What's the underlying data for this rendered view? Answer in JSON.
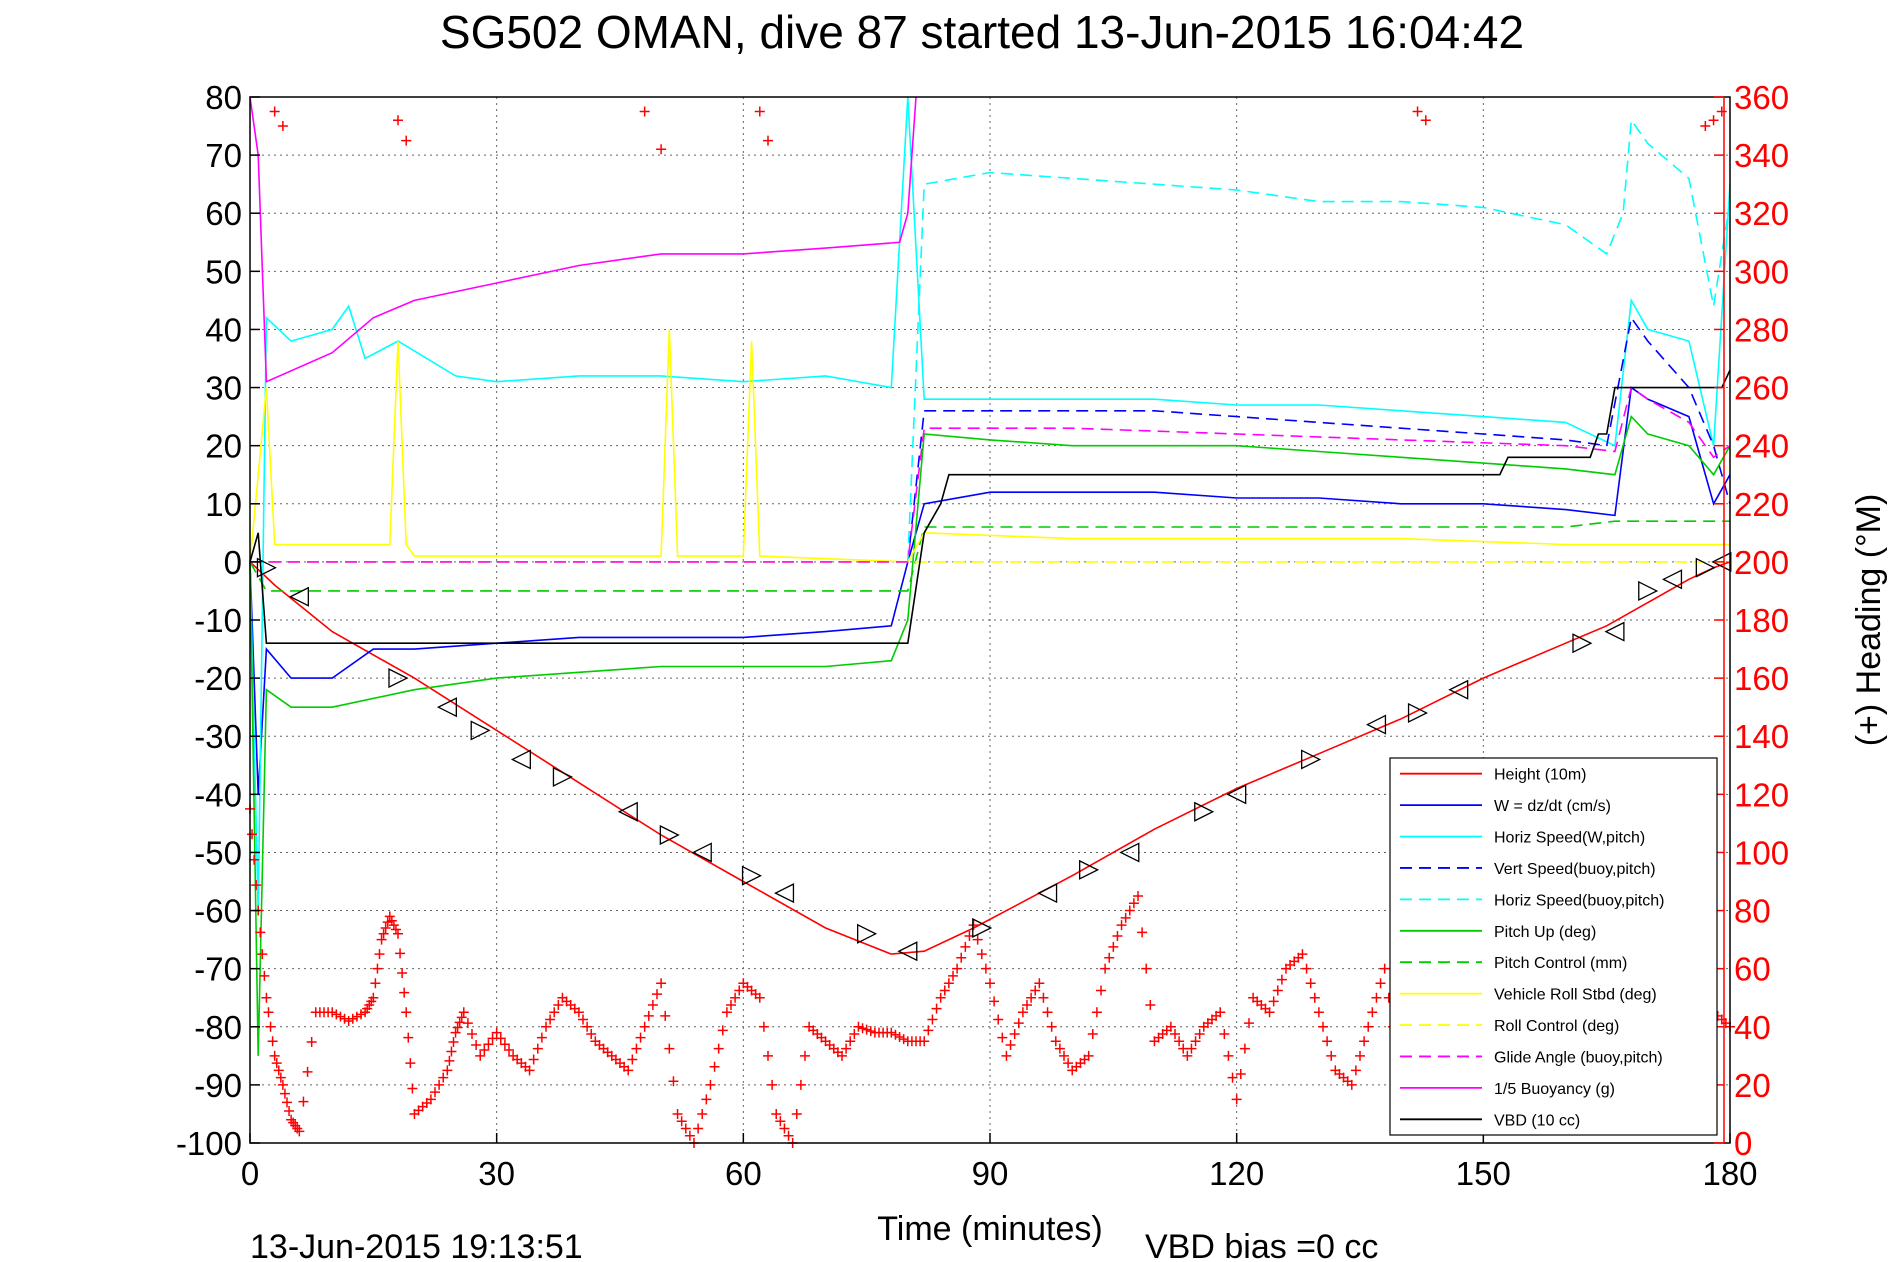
{
  "chart_data": {
    "type": "line",
    "title": "SG502 OMAN, dive 87 started 13-Jun-2015 16:04:42",
    "xlabel": "Time (minutes)",
    "ylabel": "",
    "y2label": "(+) Heading (°M)",
    "footer_left": "13-Jun-2015 19:13:51",
    "footer_right": "VBD bias =0 cc",
    "xlim": [
      0,
      180
    ],
    "ylim": [
      -100,
      80
    ],
    "y2lim": [
      0,
      360
    ],
    "x_ticks": [
      "0",
      "30",
      "60",
      "90",
      "120",
      "150",
      "180"
    ],
    "y_ticks": [
      "80",
      "70",
      "60",
      "50",
      "40",
      "30",
      "20",
      "10",
      "0",
      "-10",
      "-20",
      "-30",
      "-40",
      "-50",
      "-60",
      "-70",
      "-80",
      "-90",
      "-100"
    ],
    "y2_ticks": [
      "360",
      "340",
      "320",
      "300",
      "280",
      "260",
      "240",
      "220",
      "200",
      "180",
      "160",
      "140",
      "120",
      "100",
      "80",
      "60",
      "40",
      "20",
      "0"
    ],
    "grid": true,
    "legend_position": "bottom-right",
    "colors": {
      "heading_axis": "#ff0000"
    },
    "series": [
      {
        "name": "Height (10m)",
        "color": "#ff0000",
        "dash": "solid",
        "x": [
          0,
          3,
          10,
          20,
          30,
          40,
          50,
          60,
          70,
          78,
          82,
          88,
          100,
          110,
          120,
          130,
          140,
          150,
          160,
          165,
          170,
          175,
          178,
          180
        ],
        "y": [
          0,
          -4,
          -12,
          -20,
          -29,
          -38,
          -47,
          -55,
          -63,
          -67.5,
          -67,
          -63,
          -54,
          -46,
          -39,
          -33,
          -27,
          -20,
          -14,
          -11,
          -7,
          -3,
          -1,
          0
        ]
      },
      {
        "name": "W = dz/dt (cm/s)",
        "color": "#0000ff",
        "dash": "solid",
        "x": [
          0,
          1,
          2,
          5,
          10,
          15,
          20,
          30,
          40,
          50,
          60,
          70,
          78,
          80,
          82,
          90,
          100,
          110,
          120,
          130,
          140,
          150,
          160,
          166,
          168,
          170,
          175,
          178,
          180
        ],
        "y": [
          0,
          -40,
          -15,
          -20,
          -20,
          -15,
          -15,
          -14,
          -13,
          -13,
          -13,
          -12,
          -11,
          0,
          10,
          12,
          12,
          12,
          11,
          11,
          10,
          10,
          9,
          8,
          30,
          28,
          25,
          10,
          15
        ]
      },
      {
        "name": "Horiz Speed(W,pitch)",
        "color": "#00ffff",
        "dash": "solid",
        "x": [
          0,
          1,
          2,
          5,
          10,
          12,
          14,
          18,
          25,
          30,
          40,
          50,
          60,
          70,
          78,
          80,
          82,
          90,
          100,
          110,
          120,
          130,
          140,
          150,
          160,
          166,
          168,
          170,
          175,
          178,
          180
        ],
        "y": [
          0,
          -60,
          42,
          38,
          40,
          44,
          35,
          38,
          32,
          31,
          32,
          32,
          31,
          32,
          30,
          80,
          28,
          28,
          28,
          28,
          27,
          27,
          26,
          25,
          24,
          20,
          45,
          40,
          38,
          20,
          65
        ]
      },
      {
        "name": "Vert Speed(buoy,pitch)",
        "color": "#0000ff",
        "dash": "dashed",
        "x": [
          80,
          82,
          90,
          100,
          110,
          120,
          130,
          140,
          150,
          160,
          165,
          168,
          170,
          175,
          178,
          180
        ],
        "y": [
          0,
          26,
          26,
          26,
          26,
          25,
          24,
          23,
          22,
          21,
          20,
          42,
          38,
          30,
          20,
          10
        ]
      },
      {
        "name": "Horiz Speed(buoy,pitch)",
        "color": "#00ffff",
        "dash": "dashed",
        "x": [
          80,
          82,
          90,
          100,
          110,
          120,
          130,
          140,
          150,
          160,
          165,
          167,
          168,
          170,
          175,
          178,
          180
        ],
        "y": [
          0,
          65,
          67,
          66,
          65,
          64,
          62,
          62,
          61,
          58,
          53,
          60,
          76,
          72,
          66,
          44,
          62
        ]
      },
      {
        "name": "Pitch Up (deg)",
        "color": "#00cc00",
        "dash": "solid",
        "x": [
          0,
          1,
          2,
          5,
          10,
          20,
          30,
          40,
          50,
          60,
          70,
          78,
          80,
          82,
          90,
          100,
          110,
          120,
          130,
          140,
          150,
          160,
          166,
          168,
          170,
          175,
          178,
          180
        ],
        "y": [
          0,
          -85,
          -22,
          -25,
          -25,
          -22,
          -20,
          -19,
          -18,
          -18,
          -18,
          -17,
          -10,
          22,
          21,
          20,
          20,
          20,
          19,
          18,
          17,
          16,
          15,
          25,
          22,
          20,
          15,
          20
        ]
      },
      {
        "name": "Pitch Control (mm)",
        "color": "#00cc00",
        "dash": "dashed",
        "x": [
          0,
          2,
          80,
          82,
          160,
          166,
          180
        ],
        "y": [
          0,
          -5,
          -5,
          6,
          6,
          7,
          7
        ]
      },
      {
        "name": "Vehicle Roll Stbd (deg)",
        "color": "#ffff00",
        "dash": "solid",
        "x": [
          0,
          2,
          3,
          17,
          18,
          19,
          20,
          50,
          51,
          52,
          60,
          61,
          62,
          80,
          82,
          100,
          120,
          140,
          160,
          180
        ],
        "y": [
          0,
          30,
          3,
          3,
          38,
          3,
          1,
          1,
          40,
          1,
          1,
          38,
          1,
          0,
          5,
          4,
          4,
          4,
          3,
          3
        ]
      },
      {
        "name": "Roll Control (deg)",
        "color": "#ffff00",
        "dash": "dashed",
        "x": [
          0,
          180
        ],
        "y": [
          0,
          0
        ]
      },
      {
        "name": "Glide Angle (buoy,pitch)",
        "color": "#ff00ff",
        "dash": "dashed",
        "x": [
          0,
          80,
          82,
          100,
          120,
          140,
          160,
          166,
          168,
          170,
          175,
          178,
          180
        ],
        "y": [
          0,
          0,
          23,
          23,
          22,
          21,
          20,
          19,
          30,
          28,
          24,
          18,
          20
        ]
      },
      {
        "name": "1/5 Buoyancy (g)",
        "color": "#ff00ff",
        "dash": "solid",
        "x": [
          0,
          1,
          2,
          10,
          15,
          20,
          30,
          40,
          50,
          60,
          70,
          79,
          80,
          81
        ],
        "y": [
          80,
          70,
          31,
          36,
          42,
          45,
          48,
          51,
          53,
          53,
          54,
          55,
          60,
          80
        ]
      },
      {
        "name": "VBD (10 cc)",
        "color": "#000000",
        "dash": "solid",
        "x": [
          0,
          1,
          2,
          80,
          82,
          84,
          85,
          152,
          153,
          163,
          164,
          165,
          166,
          179,
          180
        ],
        "y": [
          0,
          5,
          -14,
          -14,
          5,
          10,
          15,
          15,
          18,
          18,
          22,
          22,
          30,
          30,
          33
        ]
      }
    ],
    "heading_series": {
      "name": "(+) Heading (°M)",
      "color": "#ff0000",
      "marker": "+",
      "x": [
        0,
        1,
        2,
        3,
        4,
        5,
        6,
        8,
        10,
        12,
        14,
        15,
        16,
        17,
        18,
        19,
        20,
        22,
        24,
        25,
        26,
        28,
        30,
        32,
        34,
        36,
        38,
        40,
        42,
        44,
        46,
        48,
        50,
        52,
        54,
        56,
        58,
        60,
        62,
        64,
        66,
        68,
        70,
        72,
        74,
        76,
        78,
        80,
        82,
        84,
        86,
        88,
        90,
        92,
        94,
        96,
        98,
        100,
        102,
        104,
        106,
        108,
        110,
        112,
        114,
        116,
        118,
        120,
        122,
        124,
        126,
        128,
        130,
        132,
        134,
        136,
        138,
        140,
        142,
        144,
        146,
        148,
        150,
        152,
        154,
        156,
        158,
        160,
        162,
        164,
        166,
        168,
        170,
        172,
        174,
        176,
        178,
        180
      ],
      "y": [
        115,
        80,
        50,
        30,
        20,
        8,
        4,
        45,
        45,
        42,
        45,
        50,
        70,
        78,
        72,
        45,
        10,
        15,
        25,
        38,
        45,
        30,
        38,
        30,
        25,
        40,
        50,
        45,
        35,
        30,
        25,
        40,
        55,
        10,
        0,
        20,
        45,
        55,
        50,
        10,
        0,
        40,
        35,
        30,
        40,
        38,
        38,
        35,
        35,
        50,
        60,
        75,
        55,
        30,
        45,
        55,
        35,
        25,
        30,
        60,
        75,
        85,
        35,
        40,
        30,
        40,
        45,
        15,
        50,
        45,
        60,
        65,
        45,
        25,
        20,
        40,
        60,
        20,
        5,
        40,
        35,
        25,
        45,
        10,
        50,
        15,
        10,
        40,
        20,
        30,
        25,
        40,
        60,
        40,
        10,
        30,
        45,
        40
      ]
    },
    "heading_wrap_points": {
      "x": [
        3,
        4,
        18,
        19,
        48,
        50,
        62,
        63,
        142,
        143,
        177,
        178,
        179
      ],
      "y": [
        355,
        350,
        352,
        345,
        355,
        342,
        355,
        345,
        355,
        352,
        350,
        352,
        355
      ]
    },
    "markers": {
      "x": [
        2,
        6,
        18,
        24,
        28,
        33,
        38,
        46,
        51,
        55,
        61,
        65,
        75,
        80,
        89,
        97,
        102,
        107,
        116,
        120,
        129,
        137,
        142,
        147,
        162,
        166,
        170,
        173,
        177,
        179
      ],
      "y": [
        -1,
        -6,
        -20,
        -25,
        -29,
        -34,
        -37,
        -43,
        -47,
        -50,
        -54,
        -57,
        -64,
        -67,
        -63,
        -57,
        -53,
        -50,
        -43,
        -40,
        -34,
        -28,
        -26,
        -22,
        -14,
        -12,
        -5,
        -3,
        -1,
        0
      ]
    }
  }
}
